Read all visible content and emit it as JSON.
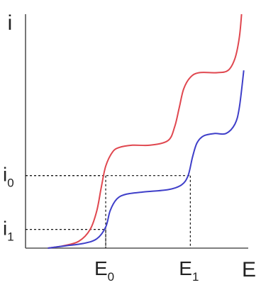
{
  "chart_data": {
    "type": "line",
    "xlabel": "E",
    "ylabel": "i",
    "x_tick_labels": [
      {
        "main": "E",
        "sub": "0"
      },
      {
        "main": "E",
        "sub": "1"
      }
    ],
    "y_tick_labels": [
      {
        "main": "i",
        "sub": "0"
      },
      {
        "main": "i",
        "sub": "1"
      }
    ],
    "xlim": [
      0,
      1
    ],
    "ylim": [
      0,
      1
    ],
    "grid": false,
    "markers": [
      {
        "x": 0.36,
        "y": 0.31
      },
      {
        "x": 0.74,
        "y": 0.31
      },
      {
        "x": 0.36,
        "y": 0.08
      }
    ],
    "series": [
      {
        "color": "#e0474f",
        "points": [
          [
            0.1,
            0.0
          ],
          [
            0.17,
            0.01
          ],
          [
            0.24,
            0.03
          ],
          [
            0.29,
            0.08
          ],
          [
            0.32,
            0.16
          ],
          [
            0.34,
            0.26
          ],
          [
            0.36,
            0.35
          ],
          [
            0.39,
            0.41
          ],
          [
            0.42,
            0.43
          ],
          [
            0.48,
            0.44
          ],
          [
            0.56,
            0.44
          ],
          [
            0.64,
            0.46
          ],
          [
            0.67,
            0.52
          ],
          [
            0.69,
            0.6
          ],
          [
            0.71,
            0.68
          ],
          [
            0.74,
            0.73
          ],
          [
            0.78,
            0.75
          ],
          [
            0.86,
            0.75
          ],
          [
            0.91,
            0.76
          ],
          [
            0.94,
            0.81
          ],
          [
            0.96,
            0.9
          ],
          [
            0.97,
            1.0
          ]
        ]
      },
      {
        "color": "#3f3fc9",
        "points": [
          [
            0.1,
            0.0
          ],
          [
            0.18,
            0.01
          ],
          [
            0.26,
            0.02
          ],
          [
            0.32,
            0.04
          ],
          [
            0.36,
            0.09
          ],
          [
            0.38,
            0.16
          ],
          [
            0.41,
            0.21
          ],
          [
            0.45,
            0.23
          ],
          [
            0.53,
            0.24
          ],
          [
            0.64,
            0.25
          ],
          [
            0.7,
            0.27
          ],
          [
            0.73,
            0.31
          ],
          [
            0.75,
            0.39
          ],
          [
            0.77,
            0.45
          ],
          [
            0.8,
            0.48
          ],
          [
            0.85,
            0.49
          ],
          [
            0.9,
            0.49
          ],
          [
            0.94,
            0.53
          ],
          [
            0.96,
            0.6
          ],
          [
            0.98,
            0.76
          ]
        ]
      }
    ]
  }
}
